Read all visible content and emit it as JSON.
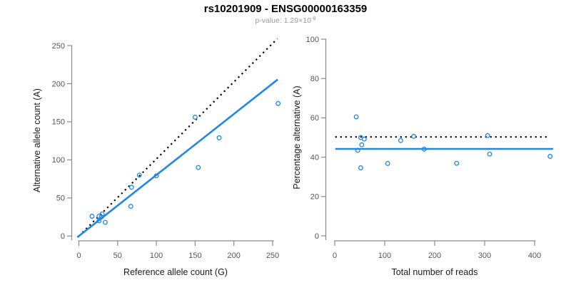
{
  "header": {
    "title": "rs10201909 - ENSG00000163359",
    "pvalue_prefix": "p-value: ",
    "pvalue_base": "1.29×10",
    "pvalue_exponent": "-8"
  },
  "colors": {
    "accent_blue": "#1f87e8",
    "axis_line_gray": "#8a8a8a",
    "tick_label_gray": "#555555",
    "axis_title_color": "#1a1a1a",
    "dotted_line_black": "#000000",
    "title_color": "#000000",
    "subtitle_gray": "#9a9a9a"
  },
  "chart_data": [
    {
      "type": "scatter",
      "name": "allele-counts-panel",
      "xlabel": "Reference allele count (G)",
      "ylabel": "Alternative allele count (A)",
      "xlim": [
        0,
        250
      ],
      "ylim": [
        0,
        250
      ],
      "xticks": [
        0,
        50,
        100,
        150,
        200,
        250
      ],
      "yticks": [
        0,
        50,
        100,
        150,
        200,
        250
      ],
      "grid": false,
      "legend": "none",
      "points": [
        [
          17,
          26
        ],
        [
          26,
          26
        ],
        [
          29,
          25
        ],
        [
          30,
          29
        ],
        [
          26,
          20
        ],
        [
          34,
          18
        ],
        [
          67,
          39
        ],
        [
          68,
          64
        ],
        [
          78,
          80
        ],
        [
          100,
          79
        ],
        [
          154,
          90
        ],
        [
          150,
          156
        ],
        [
          181,
          129
        ],
        [
          257,
          174
        ]
      ],
      "lines": [
        {
          "name": "identity-line",
          "style": "dotted",
          "color": "#000000",
          "from": [
            0,
            0
          ],
          "to": [
            256,
            259
          ]
        },
        {
          "name": "regression-line",
          "style": "solid",
          "color": "#1f87e8",
          "from": [
            -2,
            -1.6
          ],
          "to": [
            256.5,
            205.5
          ]
        }
      ]
    },
    {
      "type": "scatter",
      "name": "percentage-panel",
      "xlabel": "Total number of reads",
      "ylabel": "Percentage alternative (A)",
      "xlim": [
        0,
        400
      ],
      "ylim": [
        0,
        100
      ],
      "xticks": [
        0,
        100,
        200,
        300,
        400
      ],
      "yticks": [
        0,
        20,
        40,
        60,
        80,
        100
      ],
      "grid": false,
      "legend": "none",
      "points": [
        [
          43,
          60.5
        ],
        [
          52,
          50.0
        ],
        [
          54,
          46.3
        ],
        [
          59,
          49.2
        ],
        [
          46,
          43.5
        ],
        [
          52,
          34.6
        ],
        [
          106,
          36.8
        ],
        [
          132,
          48.5
        ],
        [
          158,
          50.6
        ],
        [
          179,
          44.1
        ],
        [
          244,
          36.9
        ],
        [
          306,
          51.0
        ],
        [
          310,
          41.6
        ],
        [
          431,
          40.4
        ]
      ],
      "lines": [
        {
          "name": "fifty-percent-line",
          "style": "dotted",
          "color": "#000000",
          "from": [
            1,
            50.3
          ],
          "to": [
            427,
            50.3
          ]
        },
        {
          "name": "mean-percentage-line",
          "style": "solid",
          "color": "#1f87e8",
          "from": [
            1,
            44.2
          ],
          "to": [
            437,
            44.2
          ]
        }
      ]
    }
  ]
}
